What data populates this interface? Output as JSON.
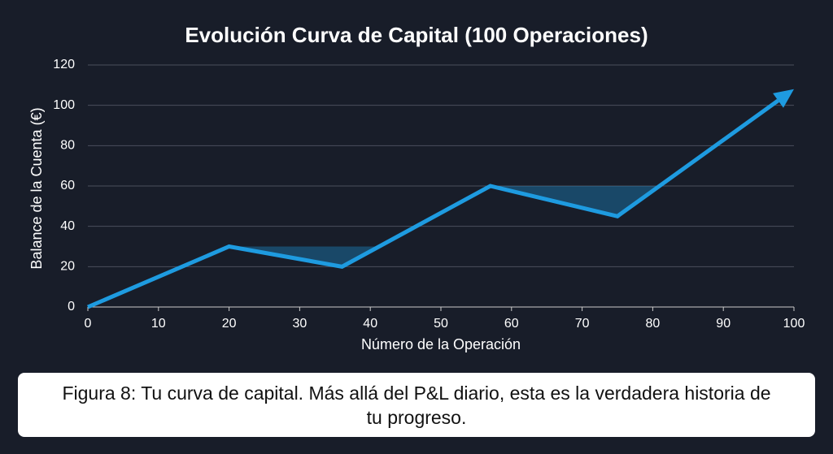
{
  "chart_data": {
    "type": "line",
    "title": "Evolución Curva de Capital (100 Operaciones)",
    "x_label": "Número de la Operación",
    "y_label": "Balance de la Cuenta (€)",
    "x": [
      0,
      20,
      36,
      57,
      75,
      100
    ],
    "series": [
      {
        "name": "Balance",
        "color": "#1e9be0",
        "values": [
          0,
          30,
          20,
          60,
          45,
          108
        ]
      }
    ],
    "xlim": [
      0,
      100
    ],
    "xticks": [
      0,
      10,
      20,
      30,
      40,
      50,
      60,
      70,
      80,
      90,
      100
    ],
    "ylim": [
      0,
      120
    ],
    "yticks": [
      0,
      20,
      40,
      60,
      80,
      100,
      120
    ],
    "grid": true
  },
  "caption": "Figura 8: Tu curva de capital. Más allá del P&L diario, esta es la verdadera historia de tu progreso."
}
